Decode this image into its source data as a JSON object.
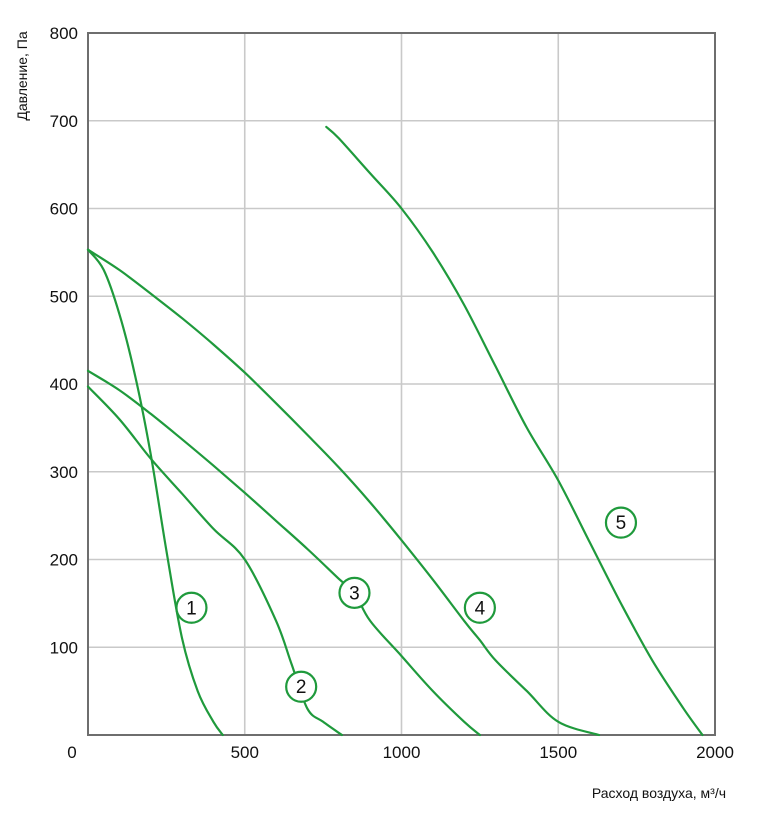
{
  "chart_data": {
    "type": "line",
    "xlabel": "Расход воздуха, м³/ч",
    "ylabel": "Давление, Па",
    "xlim": [
      0,
      2000
    ],
    "ylim": [
      0,
      800
    ],
    "xticks": [
      "0",
      "500",
      "1000",
      "1500",
      "2000"
    ],
    "yticks": [
      "100",
      "200",
      "300",
      "400",
      "500",
      "600",
      "700",
      "800"
    ],
    "grid": true,
    "colors": {
      "curve": "#1f9a3c",
      "grid": "#c9c9c9",
      "frame": "#6e6e6e"
    },
    "series": [
      {
        "label": "1",
        "x": [
          0,
          50,
          100,
          150,
          200,
          250,
          300,
          350,
          400,
          430
        ],
        "y": [
          553,
          530,
          480,
          410,
          320,
          210,
          110,
          50,
          15,
          0
        ],
        "label_at": [
          330,
          145
        ]
      },
      {
        "label": "2",
        "x": [
          0,
          100,
          200,
          300,
          400,
          500,
          600,
          650,
          700,
          750,
          810
        ],
        "y": [
          397,
          360,
          315,
          275,
          235,
          200,
          130,
          80,
          30,
          15,
          0
        ],
        "label_at": [
          680,
          55
        ]
      },
      {
        "label": "3",
        "x": [
          0,
          100,
          200,
          300,
          400,
          500,
          600,
          700,
          800,
          850,
          900,
          1000,
          1100,
          1200,
          1250
        ],
        "y": [
          415,
          393,
          366,
          337,
          307,
          276,
          244,
          212,
          178,
          162,
          130,
          90,
          50,
          15,
          0
        ],
        "label_at": [
          850,
          162
        ]
      },
      {
        "label": "4",
        "x": [
          0,
          100,
          200,
          300,
          400,
          500,
          600,
          700,
          800,
          900,
          1000,
          1100,
          1200,
          1250,
          1300,
          1400,
          1500,
          1630
        ],
        "y": [
          553,
          530,
          503,
          475,
          445,
          413,
          378,
          342,
          305,
          265,
          222,
          177,
          130,
          108,
          85,
          50,
          15,
          0
        ],
        "label_at": [
          1250,
          145
        ]
      },
      {
        "label": "5",
        "x": [
          760,
          800,
          900,
          1000,
          1100,
          1200,
          1300,
          1400,
          1500,
          1600,
          1700,
          1800,
          1900,
          1960
        ],
        "y": [
          693,
          680,
          640,
          600,
          550,
          490,
          420,
          350,
          290,
          220,
          150,
          85,
          30,
          0
        ],
        "label_at": [
          1700,
          242
        ]
      }
    ]
  }
}
